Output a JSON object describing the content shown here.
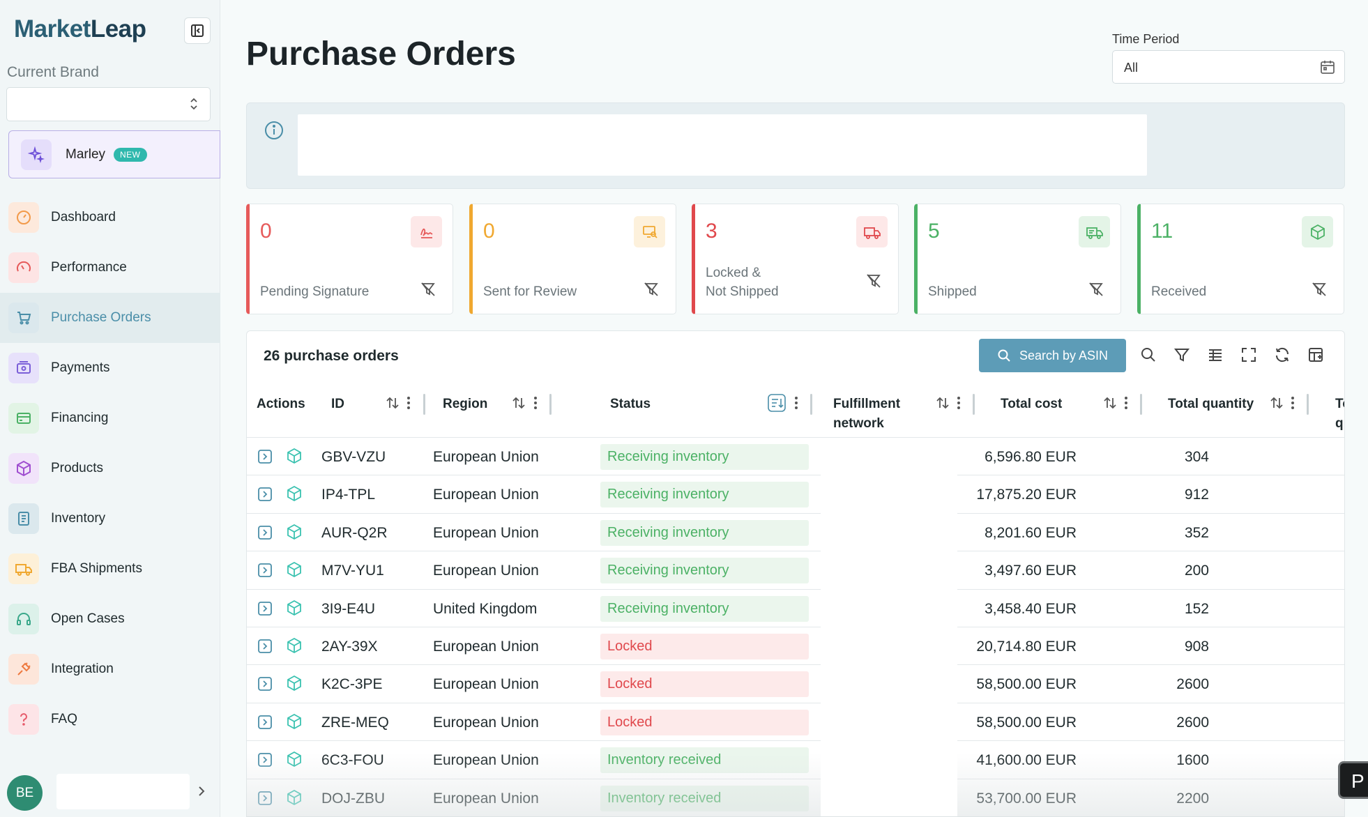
{
  "app": {
    "logo_part1": "Market",
    "logo_part2": "Leap"
  },
  "sidebar": {
    "brand_label": "Current Brand",
    "brand_value": "",
    "marley": {
      "label": "Marley",
      "badge": "NEW"
    },
    "items": [
      {
        "label": "Dashboard",
        "icon": "gauge-icon",
        "color": "#f29a4a",
        "bg": "#fde9dc"
      },
      {
        "label": "Performance",
        "icon": "speedometer-icon",
        "color": "#e65a5a",
        "bg": "#fde4e4"
      },
      {
        "label": "Purchase Orders",
        "icon": "cart-icon",
        "color": "#4a8ea8",
        "bg": "#dbe8ed"
      },
      {
        "label": "Payments",
        "icon": "wallet-icon",
        "color": "#7b5fd8",
        "bg": "#e7e1fb"
      },
      {
        "label": "Financing",
        "icon": "card-icon",
        "color": "#4bb165",
        "bg": "#e2f4e5"
      },
      {
        "label": "Products",
        "icon": "box-icon",
        "color": "#a04fd0",
        "bg": "#f1e3fa"
      },
      {
        "label": "Inventory",
        "icon": "clipboard-icon",
        "color": "#4a8ea8",
        "bg": "#dbe8ed"
      },
      {
        "label": "FBA Shipments",
        "icon": "truck-icon",
        "color": "#f0a830",
        "bg": "#fdf0d8"
      },
      {
        "label": "Open Cases",
        "icon": "headset-icon",
        "color": "#3aa88a",
        "bg": "#dcf1ea"
      },
      {
        "label": "Integration",
        "icon": "plug-icon",
        "color": "#ee7a40",
        "bg": "#fde6da"
      },
      {
        "label": "FAQ",
        "icon": "question-icon",
        "color": "#e65a6a",
        "bg": "#fde4e7"
      }
    ],
    "user_initials": "BE"
  },
  "header": {
    "title": "Purchase Orders",
    "time_period_label": "Time Period",
    "time_period_value": "All"
  },
  "cards": [
    {
      "value": "0",
      "label": "Pending Signature",
      "color": "#e65a5a",
      "icon_bg": "#fde8e8",
      "icon": "signature-icon"
    },
    {
      "value": "0",
      "label": "Sent for Review",
      "color": "#f0a830",
      "icon_bg": "#fdf1dc",
      "icon": "review-icon"
    },
    {
      "value": "3",
      "label": "Locked &\nNot Shipped",
      "color": "#e0484c",
      "icon_bg": "#fde8e8",
      "icon": "locked-truck-icon"
    },
    {
      "value": "5",
      "label": "Shipped",
      "color": "#4bb165",
      "icon_bg": "#e4f4e7",
      "icon": "shipped-truck-icon"
    },
    {
      "value": "11",
      "label": "Received",
      "color": "#4bb165",
      "icon_bg": "#e4f4e7",
      "icon": "received-box-icon"
    }
  ],
  "table": {
    "count_label": "26 purchase orders",
    "search_button": "Search by ASIN",
    "columns": {
      "actions": "Actions",
      "id": "ID",
      "region": "Region",
      "status": "Status",
      "fulfillment": "Fulfillment network",
      "total_cost": "Total cost",
      "total_quantity": "Total quantity",
      "next": "To q"
    },
    "rows": [
      {
        "id": "GBV-VZU",
        "region": "European Union",
        "status": "Receiving inventory",
        "tone": "green",
        "cost": "6,596.80 EUR",
        "qty": "304"
      },
      {
        "id": "IP4-TPL",
        "region": "European Union",
        "status": "Receiving inventory",
        "tone": "green",
        "cost": "17,875.20 EUR",
        "qty": "912"
      },
      {
        "id": "AUR-Q2R",
        "region": "European Union",
        "status": "Receiving inventory",
        "tone": "green",
        "cost": "8,201.60 EUR",
        "qty": "352"
      },
      {
        "id": "M7V-YU1",
        "region": "European Union",
        "status": "Receiving inventory",
        "tone": "green",
        "cost": "3,497.60 EUR",
        "qty": "200"
      },
      {
        "id": "3I9-E4U",
        "region": "United Kingdom",
        "status": "Receiving inventory",
        "tone": "green",
        "cost": "3,458.40 EUR",
        "qty": "152"
      },
      {
        "id": "2AY-39X",
        "region": "European Union",
        "status": "Locked",
        "tone": "red",
        "cost": "20,714.80 EUR",
        "qty": "908"
      },
      {
        "id": "K2C-3PE",
        "region": "European Union",
        "status": "Locked",
        "tone": "red",
        "cost": "58,500.00 EUR",
        "qty": "2600"
      },
      {
        "id": "ZRE-MEQ",
        "region": "European Union",
        "status": "Locked",
        "tone": "red",
        "cost": "58,500.00 EUR",
        "qty": "2600"
      },
      {
        "id": "6C3-FOU",
        "region": "European Union",
        "status": "Inventory received",
        "tone": "green",
        "cost": "41,600.00 EUR",
        "qty": "1600"
      },
      {
        "id": "DOJ-ZBU",
        "region": "European Union",
        "status": "Inventory received",
        "tone": "green",
        "cost": "53,700.00 EUR",
        "qty": "2200"
      }
    ]
  },
  "floating_button": "P"
}
